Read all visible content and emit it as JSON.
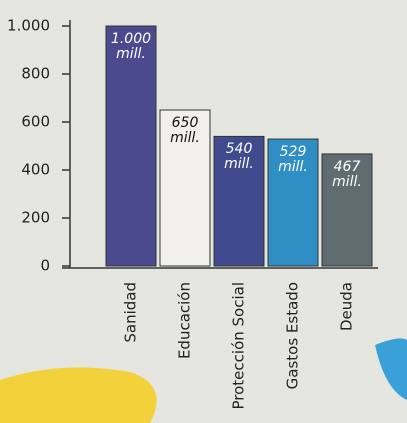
{
  "chart_data": {
    "type": "bar",
    "categories": [
      "Sanidad",
      "Educación",
      "Protección Social",
      "Gastos Estado",
      "Deuda"
    ],
    "values": [
      1000,
      650,
      540,
      529,
      467
    ],
    "value_labels": [
      "1.000 mill.",
      "650 mill.",
      "540 mill.",
      "529 mill.",
      "467 mill."
    ],
    "colors": [
      "#4b4a8e",
      "#f1f0ea",
      "#3f4b8c",
      "#2f8fc4",
      "#5f6d71"
    ],
    "label_colors": [
      "#ffffff",
      "#111111",
      "#ffffff",
      "#ffffff",
      "#ffffff"
    ],
    "ylim": [
      0,
      1000
    ],
    "yticks": [
      0,
      200,
      400,
      600,
      800,
      {
        "value": 1000,
        "label": "1.000"
      }
    ]
  }
}
